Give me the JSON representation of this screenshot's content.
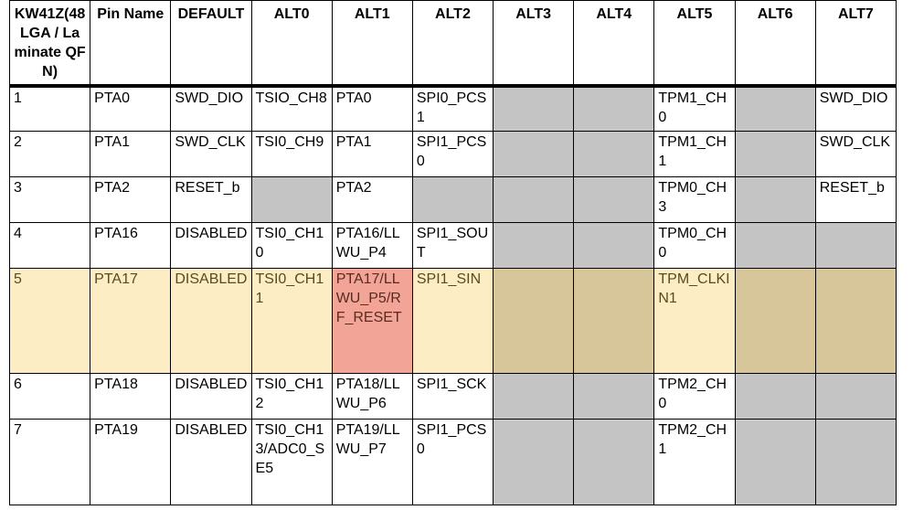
{
  "table": {
    "headers": [
      "KW41Z(48 LGA / Laminate QFN)",
      "Pin Name",
      "DEFAULT",
      "ALT0",
      "ALT1",
      "ALT2",
      "ALT3",
      "ALT4",
      "ALT5",
      "ALT6",
      "ALT7"
    ],
    "rows": [
      [
        "1",
        "PTA0",
        "SWD_DIO",
        "TSIO_CH8",
        "PTA0",
        "SPI0_PCS1",
        "",
        "",
        "TPM1_CH0",
        "",
        "SWD_DIO"
      ],
      [
        "2",
        "PTA1",
        "SWD_CLK",
        "TSI0_CH9",
        "PTA1",
        "SPI1_PCS0",
        "",
        "",
        "TPM1_CH1",
        "",
        "SWD_CLK"
      ],
      [
        "3",
        "PTA2",
        "RESET_b",
        "",
        "PTA2",
        "",
        "",
        "",
        "TPM0_CH3",
        "",
        "RESET_b"
      ],
      [
        "4",
        "PTA16",
        "DISABLED",
        "TSI0_CH10",
        "PTA16/LLWU_P4",
        "SPI1_SOUT",
        "",
        "",
        "TPM0_CH0",
        "",
        ""
      ],
      [
        "5",
        "PTA17",
        "DISABLED",
        "TSI0_CH11",
        "PTA17/LLWU_P5/RF_RESET",
        "SPI1_SIN",
        "",
        "",
        "TPM_CLKIN1",
        "",
        ""
      ],
      [
        "6",
        "PTA18",
        "DISABLED",
        "TSI0_CH12",
        "PTA18/LLWU_P6",
        "SPI1_SCK",
        "",
        "",
        "TPM2_CH0",
        "",
        ""
      ],
      [
        "7",
        "PTA19",
        "DISABLED",
        "TSI0_CH13/ADC0_SE5",
        "PTA19/LLWU_P7",
        "SPI1_PCS0",
        "",
        "",
        "TPM2_CH1",
        "",
        ""
      ]
    ],
    "highlighted_row": "5",
    "highlighted_cell": "PTA17/LLWU_P5/RF_RESET"
  },
  "colors": {
    "empty_cell": "#c4c4c4",
    "row_highlight": "#fcedc4",
    "cell_highlight": "#f2a596"
  }
}
